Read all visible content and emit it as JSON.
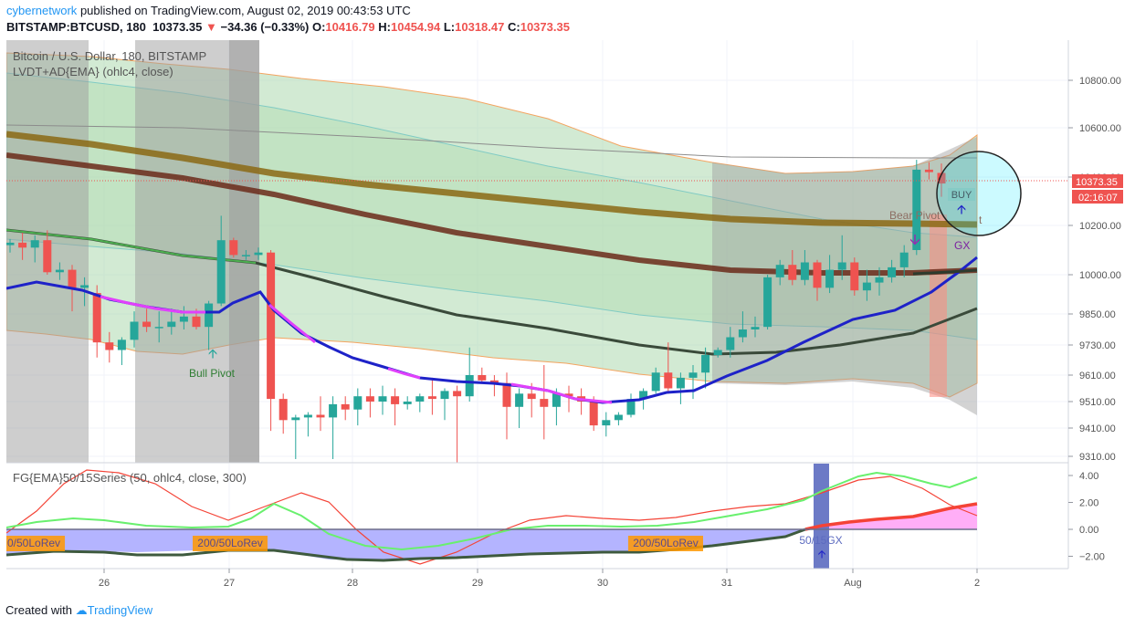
{
  "header": {
    "author": "cybernetwork",
    "published_text": "published on TradingView.com, August 02, 2019 00:43:53 UTC",
    "symbol": "BITSTAMP:BTCUSD, 180",
    "last": "10373.35",
    "change": "−34.36 (−0.33%)",
    "o_label": "O:",
    "o": "10416.79",
    "h_label": "H:",
    "h": "10454.94",
    "l_label": "L:",
    "l": "10318.47",
    "c_label": "C:",
    "c": "10373.35"
  },
  "legend": {
    "symbol_title": "Bitcoin / U.S. Dollar, 180, BITSTAMP",
    "indicator": "LVDT+AD{EMA} (ohlc4, close)",
    "oscillator": "FG{EMA}50/15Series (50, ohlc4, close, 300)"
  },
  "price_badges": {
    "last": "10373.35",
    "countdown": "02:16:07"
  },
  "annotations": {
    "bull_pivot": "Bull Pivot",
    "bear_pivot": "Bear Pivot",
    "bear_pivot_tail": "t",
    "buy": "BUY",
    "gx": "GX",
    "lorev_a": "0/50LoRev",
    "lorev_b": "200/50LoRev",
    "lorev_c": "200/50LoRev",
    "cross": "50/15GX"
  },
  "footer": {
    "created_with": "Created with",
    "brand": "TradingView"
  },
  "colors": {
    "up": "#26a69a",
    "down": "#ef5350",
    "band_green": "#a5d6a7",
    "band_gray": "#9e9e9e",
    "ema_blue": "#1e22c8",
    "ema_magenta": "#e040fb",
    "osc_green": "#69f06e",
    "osc_red": "#f44336",
    "osc_fill": "#b4b4ff"
  },
  "chart_data": [
    {
      "type": "candlestick",
      "title": "Bitcoin / U.S. Dollar, 180, BITSTAMP",
      "x_ticks": [
        "26",
        "27",
        "28",
        "29",
        "30",
        "31",
        "Aug",
        "2"
      ],
      "y_ticks": [
        "10800.00",
        "10600.00",
        "10400.00",
        "10200.00",
        "10000.00",
        "9850.00",
        "9730.00",
        "9610.00",
        "9510.00",
        "9410.00",
        "9310.00"
      ],
      "y_scale": "log",
      "ylim": [
        9280,
        10980
      ],
      "last_price": 10373.35,
      "candles": [
        [
          10120,
          10145,
          10090,
          10130
        ],
        [
          10130,
          10170,
          10060,
          10110
        ],
        [
          10110,
          10160,
          10050,
          10140
        ],
        [
          10140,
          10180,
          10000,
          10010
        ],
        [
          10010,
          10050,
          9980,
          10020
        ],
        [
          10020,
          10040,
          9860,
          9950
        ],
        [
          9950,
          9990,
          9880,
          9960
        ],
        [
          9930,
          9960,
          9680,
          9740
        ],
        [
          9740,
          9780,
          9660,
          9710
        ],
        [
          9710,
          9760,
          9650,
          9750
        ],
        [
          9750,
          9860,
          9720,
          9820
        ],
        [
          9820,
          9870,
          9780,
          9800
        ],
        [
          9800,
          9860,
          9740,
          9800
        ],
        [
          9800,
          9870,
          9770,
          9820
        ],
        [
          9820,
          9880,
          9790,
          9840
        ],
        [
          9840,
          9870,
          9790,
          9800
        ],
        [
          9800,
          9900,
          9710,
          9890
        ],
        [
          9890,
          10240,
          9880,
          10140
        ],
        [
          10140,
          10150,
          10070,
          10080
        ],
        [
          10080,
          10100,
          10060,
          10080
        ],
        [
          10080,
          10110,
          10060,
          10090
        ],
        [
          10090,
          10100,
          9400,
          9520
        ],
        [
          9520,
          9540,
          9390,
          9440
        ],
        [
          9440,
          9460,
          9300,
          9450
        ],
        [
          9450,
          9470,
          9380,
          9460
        ],
        [
          9460,
          9530,
          9400,
          9450
        ],
        [
          9450,
          9530,
          9300,
          9500
        ],
        [
          9500,
          9530,
          9440,
          9480
        ],
        [
          9480,
          9560,
          9420,
          9530
        ],
        [
          9530,
          9560,
          9450,
          9510
        ],
        [
          9510,
          9570,
          9460,
          9530
        ],
        [
          9530,
          9560,
          9420,
          9500
        ],
        [
          9500,
          9530,
          9480,
          9510
        ],
        [
          9510,
          9540,
          9470,
          9530
        ],
        [
          9530,
          9600,
          9460,
          9520
        ],
        [
          9520,
          9560,
          9440,
          9550
        ],
        [
          9550,
          9570,
          9280,
          9530
        ],
        [
          9530,
          9720,
          9510,
          9610
        ],
        [
          9610,
          9640,
          9580,
          9590
        ],
        [
          9590,
          9610,
          9530,
          9580
        ],
        [
          9580,
          9620,
          9370,
          9490
        ],
        [
          9490,
          9560,
          9410,
          9540
        ],
        [
          9540,
          9580,
          9450,
          9520
        ],
        [
          9520,
          9650,
          9370,
          9490
        ],
        [
          9490,
          9560,
          9420,
          9540
        ],
        [
          9540,
          9570,
          9470,
          9530
        ],
        [
          9530,
          9560,
          9460,
          9510
        ],
        [
          9510,
          9530,
          9400,
          9420
        ],
        [
          9420,
          9470,
          9380,
          9440
        ],
        [
          9440,
          9470,
          9420,
          9460
        ],
        [
          9460,
          9540,
          9450,
          9520
        ],
        [
          9520,
          9560,
          9480,
          9550
        ],
        [
          9550,
          9640,
          9540,
          9620
        ],
        [
          9620,
          9740,
          9540,
          9560
        ],
        [
          9560,
          9620,
          9500,
          9600
        ],
        [
          9600,
          9650,
          9520,
          9620
        ],
        [
          9620,
          9720,
          9560,
          9690
        ],
        [
          9690,
          9720,
          9680,
          9710
        ],
        [
          9710,
          9800,
          9680,
          9760
        ],
        [
          9760,
          9860,
          9740,
          9790
        ],
        [
          9790,
          9840,
          9760,
          9800
        ],
        [
          9800,
          10000,
          9790,
          9990
        ],
        [
          9990,
          10060,
          9960,
          10040
        ],
        [
          10040,
          10100,
          9960,
          9980
        ],
        [
          9980,
          10100,
          9960,
          10050
        ],
        [
          10050,
          10060,
          9900,
          9950
        ],
        [
          9950,
          10080,
          9930,
          10020
        ],
        [
          10020,
          10160,
          9980,
          10050
        ],
        [
          10050,
          10070,
          9920,
          9940
        ],
        [
          9940,
          10020,
          9900,
          9970
        ],
        [
          9970,
          10030,
          9920,
          9990
        ],
        [
          9990,
          10060,
          9970,
          10030
        ],
        [
          10030,
          10120,
          9990,
          10090
        ],
        [
          10100,
          10470,
          10080,
          10430
        ],
        [
          10430,
          10460,
          10390,
          10420
        ],
        [
          10416.79,
          10454.94,
          10318.47,
          10373.35
        ]
      ]
    },
    {
      "type": "line",
      "title": "FG{EMA}50/15Series (50, ohlc4, close, 300)",
      "y_ticks": [
        "4.00",
        "2.00",
        "0.00",
        "−2.00"
      ],
      "ylim": [
        -3.0,
        4.6
      ],
      "series": []
    }
  ]
}
